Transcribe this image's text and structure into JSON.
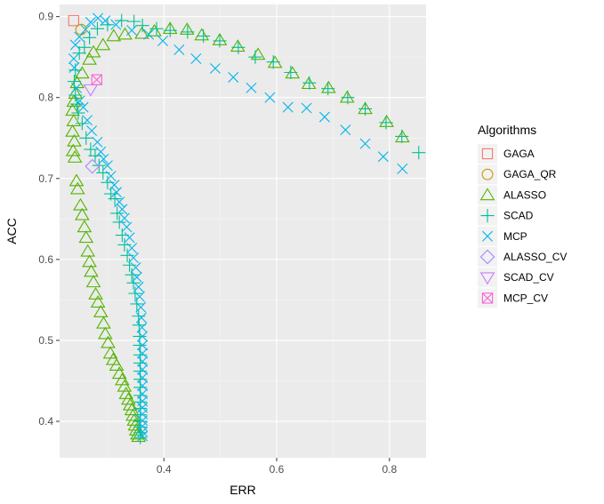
{
  "chart_data": {
    "type": "scatter",
    "title": "",
    "xlabel": "ERR",
    "ylabel": "ACC",
    "xlim": [
      0.215,
      0.865
    ],
    "ylim": [
      0.355,
      0.915
    ],
    "x_ticks": [
      0.4,
      0.6,
      0.8
    ],
    "x_tick_labels": [
      "0.4",
      "0.6",
      "0.8"
    ],
    "y_ticks": [
      0.4,
      0.5,
      0.6,
      0.7,
      0.8,
      0.9
    ],
    "y_tick_labels": [
      "0.4",
      "0.5",
      "0.6",
      "0.7",
      "0.8",
      "0.9"
    ],
    "grid": true,
    "legend_position": "right",
    "legend_title": "Algorithms",
    "series": [
      {
        "name": "GAGA",
        "shape": "square",
        "color": "#F8766D",
        "points": [
          [
            0.24,
            0.895
          ]
        ]
      },
      {
        "name": "GAGA_QR",
        "shape": "circle",
        "color": "#C49A00",
        "points": [
          [
            0.253,
            0.884
          ]
        ]
      },
      {
        "name": "ALASSO",
        "shape": "triangle",
        "color": "#53B400",
        "points": [
          [
            0.823,
            0.751
          ],
          [
            0.795,
            0.77
          ],
          [
            0.757,
            0.786
          ],
          [
            0.725,
            0.8
          ],
          [
            0.692,
            0.812
          ],
          [
            0.657,
            0.817
          ],
          [
            0.628,
            0.83
          ],
          [
            0.597,
            0.843
          ],
          [
            0.567,
            0.853
          ],
          [
            0.531,
            0.863
          ],
          [
            0.499,
            0.871
          ],
          [
            0.467,
            0.877
          ],
          [
            0.441,
            0.884
          ],
          [
            0.411,
            0.885
          ],
          [
            0.383,
            0.882
          ],
          [
            0.361,
            0.879
          ],
          [
            0.331,
            0.878
          ],
          [
            0.311,
            0.876
          ],
          [
            0.292,
            0.865
          ],
          [
            0.275,
            0.856
          ],
          [
            0.268,
            0.847
          ],
          [
            0.255,
            0.83
          ],
          [
            0.246,
            0.818
          ],
          [
            0.243,
            0.805
          ],
          [
            0.24,
            0.795
          ],
          [
            0.238,
            0.784
          ],
          [
            0.24,
            0.771
          ],
          [
            0.238,
            0.758
          ],
          [
            0.241,
            0.746
          ],
          [
            0.239,
            0.734
          ],
          [
            0.242,
            0.726
          ],
          [
            0.245,
            0.697
          ],
          [
            0.247,
            0.687
          ],
          [
            0.252,
            0.667
          ],
          [
            0.255,
            0.655
          ],
          [
            0.259,
            0.64
          ],
          [
            0.262,
            0.627
          ],
          [
            0.265,
            0.61
          ],
          [
            0.268,
            0.597
          ],
          [
            0.271,
            0.585
          ],
          [
            0.275,
            0.572
          ],
          [
            0.279,
            0.557
          ],
          [
            0.283,
            0.547
          ],
          [
            0.288,
            0.535
          ],
          [
            0.293,
            0.521
          ],
          [
            0.296,
            0.508
          ],
          [
            0.301,
            0.497
          ],
          [
            0.305,
            0.484
          ],
          [
            0.31,
            0.476
          ],
          [
            0.316,
            0.469
          ],
          [
            0.321,
            0.459
          ],
          [
            0.326,
            0.451
          ],
          [
            0.33,
            0.443
          ],
          [
            0.333,
            0.434
          ],
          [
            0.337,
            0.427
          ],
          [
            0.34,
            0.42
          ],
          [
            0.343,
            0.414
          ],
          [
            0.345,
            0.407
          ],
          [
            0.347,
            0.401
          ],
          [
            0.349,
            0.395
          ],
          [
            0.351,
            0.389
          ],
          [
            0.353,
            0.384
          ],
          [
            0.355,
            0.381
          ]
        ]
      },
      {
        "name": "SCAD",
        "shape": "plus",
        "color": "#00C094",
        "points": [
          [
            0.852,
            0.732
          ],
          [
            0.822,
            0.752
          ],
          [
            0.794,
            0.769
          ],
          [
            0.757,
            0.786
          ],
          [
            0.726,
            0.8
          ],
          [
            0.691,
            0.811
          ],
          [
            0.658,
            0.818
          ],
          [
            0.625,
            0.831
          ],
          [
            0.594,
            0.844
          ],
          [
            0.562,
            0.85
          ],
          [
            0.532,
            0.862
          ],
          [
            0.499,
            0.87
          ],
          [
            0.47,
            0.876
          ],
          [
            0.442,
            0.881
          ],
          [
            0.411,
            0.883
          ],
          [
            0.387,
            0.885
          ],
          [
            0.362,
            0.889
          ],
          [
            0.347,
            0.894
          ],
          [
            0.325,
            0.895
          ],
          [
            0.3,
            0.89
          ],
          [
            0.282,
            0.885
          ],
          [
            0.268,
            0.874
          ],
          [
            0.259,
            0.862
          ],
          [
            0.25,
            0.855
          ],
          [
            0.243,
            0.834
          ],
          [
            0.241,
            0.82
          ],
          [
            0.243,
            0.803
          ],
          [
            0.246,
            0.792
          ],
          [
            0.248,
            0.781
          ],
          [
            0.255,
            0.768
          ],
          [
            0.262,
            0.75
          ],
          [
            0.27,
            0.736
          ],
          [
            0.278,
            0.728
          ],
          [
            0.285,
            0.716
          ],
          [
            0.292,
            0.707
          ],
          [
            0.3,
            0.695
          ],
          [
            0.306,
            0.681
          ],
          [
            0.313,
            0.675
          ],
          [
            0.317,
            0.657
          ],
          [
            0.321,
            0.646
          ],
          [
            0.326,
            0.63
          ],
          [
            0.33,
            0.618
          ],
          [
            0.335,
            0.605
          ],
          [
            0.339,
            0.593
          ],
          [
            0.343,
            0.581
          ],
          [
            0.346,
            0.571
          ],
          [
            0.349,
            0.558
          ],
          [
            0.352,
            0.545
          ],
          [
            0.355,
            0.53
          ],
          [
            0.356,
            0.519
          ],
          [
            0.357,
            0.505
          ],
          [
            0.357,
            0.494
          ],
          [
            0.358,
            0.482
          ],
          [
            0.358,
            0.472
          ],
          [
            0.358,
            0.462
          ],
          [
            0.358,
            0.452
          ],
          [
            0.358,
            0.442
          ],
          [
            0.358,
            0.432
          ],
          [
            0.358,
            0.424
          ],
          [
            0.358,
            0.416
          ],
          [
            0.358,
            0.408
          ],
          [
            0.358,
            0.4
          ],
          [
            0.358,
            0.393
          ],
          [
            0.358,
            0.386
          ],
          [
            0.358,
            0.38
          ]
        ]
      },
      {
        "name": "MCP",
        "shape": "cross",
        "color": "#00B6EB",
        "points": [
          [
            0.823,
            0.712
          ],
          [
            0.789,
            0.727
          ],
          [
            0.757,
            0.743
          ],
          [
            0.722,
            0.76
          ],
          [
            0.685,
            0.776
          ],
          [
            0.653,
            0.787
          ],
          [
            0.62,
            0.788
          ],
          [
            0.588,
            0.8
          ],
          [
            0.555,
            0.812
          ],
          [
            0.523,
            0.825
          ],
          [
            0.491,
            0.836
          ],
          [
            0.457,
            0.848
          ],
          [
            0.427,
            0.859
          ],
          [
            0.398,
            0.87
          ],
          [
            0.373,
            0.878
          ],
          [
            0.343,
            0.883
          ],
          [
            0.315,
            0.89
          ],
          [
            0.296,
            0.895
          ],
          [
            0.283,
            0.898
          ],
          [
            0.27,
            0.893
          ],
          [
            0.261,
            0.884
          ],
          [
            0.25,
            0.875
          ],
          [
            0.243,
            0.865
          ],
          [
            0.24,
            0.848
          ],
          [
            0.241,
            0.837
          ],
          [
            0.245,
            0.812
          ],
          [
            0.251,
            0.796
          ],
          [
            0.257,
            0.788
          ],
          [
            0.264,
            0.772
          ],
          [
            0.272,
            0.759
          ],
          [
            0.282,
            0.745
          ],
          [
            0.288,
            0.733
          ],
          [
            0.293,
            0.724
          ],
          [
            0.3,
            0.716
          ],
          [
            0.306,
            0.703
          ],
          [
            0.312,
            0.692
          ],
          [
            0.316,
            0.683
          ],
          [
            0.321,
            0.671
          ],
          [
            0.326,
            0.662
          ],
          [
            0.33,
            0.651
          ],
          [
            0.334,
            0.64
          ],
          [
            0.339,
            0.627
          ],
          [
            0.343,
            0.614
          ],
          [
            0.346,
            0.602
          ],
          [
            0.35,
            0.59
          ],
          [
            0.352,
            0.578
          ],
          [
            0.355,
            0.566
          ],
          [
            0.357,
            0.554
          ],
          [
            0.359,
            0.541
          ],
          [
            0.36,
            0.528
          ],
          [
            0.361,
            0.516
          ],
          [
            0.362,
            0.505
          ],
          [
            0.362,
            0.494
          ],
          [
            0.362,
            0.484
          ],
          [
            0.362,
            0.474
          ],
          [
            0.362,
            0.464
          ],
          [
            0.362,
            0.454
          ],
          [
            0.362,
            0.444
          ],
          [
            0.362,
            0.434
          ],
          [
            0.362,
            0.425
          ],
          [
            0.362,
            0.417
          ],
          [
            0.362,
            0.409
          ],
          [
            0.362,
            0.401
          ],
          [
            0.362,
            0.394
          ],
          [
            0.362,
            0.387
          ],
          [
            0.362,
            0.382
          ]
        ]
      },
      {
        "name": "ALASSO_CV",
        "shape": "diamond",
        "color": "#A58AFF",
        "points": [
          [
            0.273,
            0.715
          ]
        ]
      },
      {
        "name": "SCAD_CV",
        "shape": "triangle-down",
        "color": "#C77CFF",
        "points": [
          [
            0.27,
            0.81
          ]
        ]
      },
      {
        "name": "MCP_CV",
        "shape": "boxcross",
        "color": "#FB61D7",
        "points": [
          [
            0.281,
            0.822
          ]
        ]
      }
    ]
  }
}
